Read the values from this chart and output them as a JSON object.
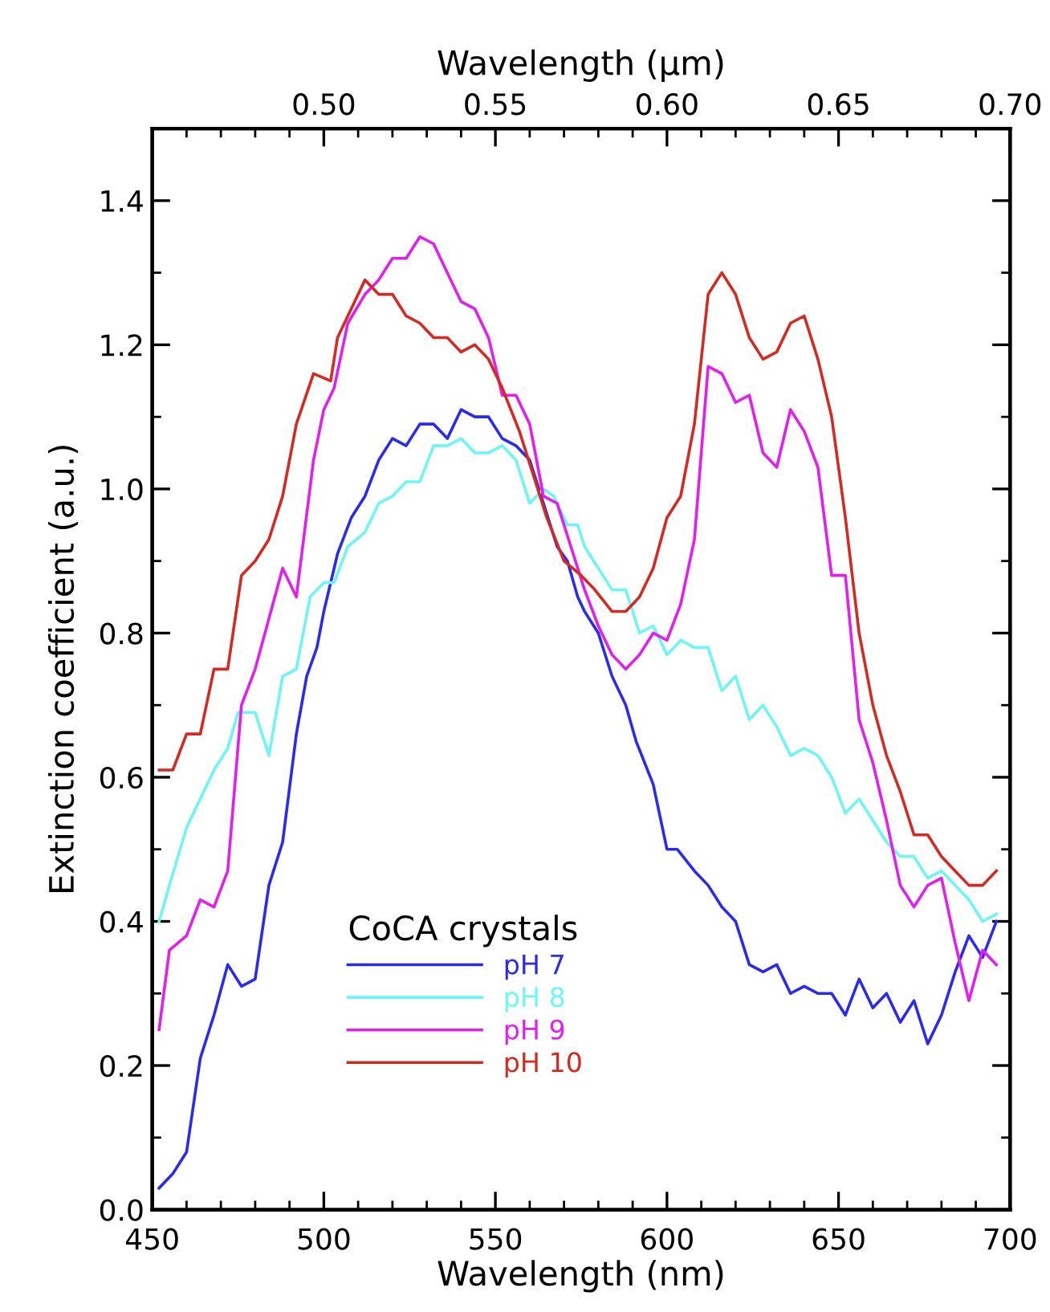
{
  "chart_data": {
    "type": "line",
    "xlabel": "Wavelength (nm)",
    "ylabel": "Extinction coefficient (a.u.)",
    "x2label": "Wavelength (μm)",
    "legend_title": "CoCA crystals",
    "legend": "bottom left",
    "grid": false,
    "xlim": [
      450,
      700
    ],
    "xticks": [
      450,
      500,
      550,
      600,
      650,
      700
    ],
    "ylim": [
      0,
      1.5
    ],
    "yticks": [
      {
        "value": 0,
        "label": "0.0"
      },
      0.2,
      0.4,
      0.6,
      0.8,
      {
        "value": 1,
        "label": "1.0"
      },
      1.2,
      1.4
    ],
    "x2lim": [
      0.45,
      0.7
    ],
    "x2ticks": [
      {
        "value": 0.5,
        "label": "0.50"
      },
      0.55,
      {
        "value": 0.6,
        "label": "0.60"
      },
      0.65,
      {
        "value": 0.7,
        "label": "0.70"
      }
    ],
    "series": [
      {
        "name": "pH 7",
        "color": "#2a2af0",
        "x": [
          452,
          456,
          460,
          464,
          468,
          472,
          476,
          480,
          484,
          488,
          492,
          495,
          498,
          500,
          504,
          508,
          512,
          516,
          520,
          524,
          528,
          532,
          536,
          540,
          544,
          548,
          552,
          556,
          560,
          564,
          568,
          571,
          574,
          576,
          580,
          584,
          588,
          591,
          596,
          600,
          603,
          608,
          612,
          616,
          620,
          624,
          628,
          632,
          636,
          640,
          644,
          648,
          652,
          656,
          660,
          664,
          668,
          672,
          676,
          680,
          684,
          688,
          692,
          696
        ],
        "values": [
          0.03,
          0.05,
          0.08,
          0.21,
          0.27,
          0.34,
          0.31,
          0.32,
          0.45,
          0.51,
          0.66,
          0.74,
          0.78,
          0.83,
          0.91,
          0.96,
          0.99,
          1.04,
          1.07,
          1.06,
          1.09,
          1.09,
          1.07,
          1.11,
          1.1,
          1.1,
          1.07,
          1.06,
          1.04,
          0.98,
          0.92,
          0.9,
          0.85,
          0.83,
          0.8,
          0.74,
          0.7,
          0.65,
          0.59,
          0.5,
          0.5,
          0.47,
          0.45,
          0.42,
          0.4,
          0.34,
          0.33,
          0.34,
          0.3,
          0.31,
          0.3,
          0.3,
          0.27,
          0.32,
          0.28,
          0.3,
          0.26,
          0.29,
          0.23,
          0.27,
          0.33,
          0.38,
          0.35,
          0.4
        ]
      },
      {
        "name": "pH 8",
        "color": "#6ef5f5",
        "x": [
          452,
          455,
          460,
          464,
          468,
          472,
          475,
          480,
          484,
          488,
          492,
          496,
          500,
          503,
          507,
          512,
          516,
          520,
          524,
          528,
          532,
          536,
          540,
          544,
          548,
          552,
          556,
          560,
          564,
          567,
          571,
          574,
          576,
          580,
          584,
          588,
          592,
          596,
          600,
          604,
          608,
          612,
          616,
          620,
          624,
          628,
          632,
          636,
          640,
          644,
          648,
          652,
          656,
          660,
          664,
          668,
          672,
          676,
          680,
          684,
          688,
          692,
          696
        ],
        "values": [
          0.4,
          0.45,
          0.53,
          0.57,
          0.61,
          0.64,
          0.69,
          0.69,
          0.63,
          0.74,
          0.75,
          0.85,
          0.87,
          0.87,
          0.92,
          0.94,
          0.98,
          0.99,
          1.01,
          1.01,
          1.06,
          1.06,
          1.07,
          1.05,
          1.05,
          1.06,
          1.04,
          0.98,
          1.0,
          0.99,
          0.95,
          0.95,
          0.92,
          0.89,
          0.86,
          0.86,
          0.8,
          0.81,
          0.77,
          0.79,
          0.78,
          0.78,
          0.72,
          0.74,
          0.68,
          0.7,
          0.67,
          0.63,
          0.64,
          0.63,
          0.6,
          0.55,
          0.57,
          0.54,
          0.51,
          0.49,
          0.49,
          0.46,
          0.47,
          0.45,
          0.43,
          0.4,
          0.41
        ]
      },
      {
        "name": "pH 9",
        "color": "#e21ef0",
        "x": [
          452,
          455,
          460,
          464,
          468,
          472,
          476,
          480,
          484,
          488,
          492,
          497,
          500,
          503,
          507,
          512,
          516,
          520,
          524,
          528,
          532,
          536,
          540,
          544,
          548,
          552,
          556,
          560,
          564,
          568,
          572,
          576,
          580,
          584,
          588,
          592,
          596,
          600,
          604,
          608,
          612,
          616,
          620,
          624,
          628,
          632,
          636,
          640,
          644,
          648,
          652,
          656,
          660,
          664,
          668,
          672,
          676,
          680,
          684,
          688,
          692,
          696
        ],
        "values": [
          0.25,
          0.36,
          0.38,
          0.43,
          0.42,
          0.47,
          0.7,
          0.75,
          0.82,
          0.89,
          0.85,
          1.04,
          1.11,
          1.14,
          1.23,
          1.27,
          1.29,
          1.32,
          1.32,
          1.35,
          1.34,
          1.3,
          1.26,
          1.25,
          1.21,
          1.13,
          1.13,
          1.09,
          0.99,
          0.98,
          0.92,
          0.86,
          0.81,
          0.77,
          0.75,
          0.77,
          0.8,
          0.79,
          0.84,
          0.93,
          1.17,
          1.16,
          1.12,
          1.13,
          1.05,
          1.03,
          1.11,
          1.08,
          1.03,
          0.88,
          0.88,
          0.68,
          0.62,
          0.54,
          0.45,
          0.42,
          0.45,
          0.46,
          0.37,
          0.29,
          0.36,
          0.34
        ]
      },
      {
        "name": "pH 10",
        "color": "#d42a22",
        "x": [
          452,
          456,
          460,
          464,
          468,
          472,
          476,
          480,
          484,
          488,
          492,
          497,
          502,
          504,
          508,
          512,
          516,
          520,
          524,
          528,
          532,
          536,
          540,
          544,
          548,
          552,
          557,
          561,
          565,
          570,
          575,
          579,
          584,
          588,
          592,
          596,
          600,
          604,
          608,
          612,
          616,
          620,
          624,
          628,
          632,
          636,
          640,
          644,
          648,
          652,
          656,
          660,
          664,
          668,
          672,
          676,
          680,
          684,
          688,
          692,
          696
        ],
        "values": [
          0.61,
          0.61,
          0.66,
          0.66,
          0.75,
          0.75,
          0.88,
          0.9,
          0.93,
          0.99,
          1.09,
          1.16,
          1.15,
          1.21,
          1.25,
          1.29,
          1.27,
          1.27,
          1.24,
          1.23,
          1.21,
          1.21,
          1.19,
          1.2,
          1.18,
          1.14,
          1.08,
          1.02,
          0.96,
          0.9,
          0.88,
          0.86,
          0.83,
          0.83,
          0.85,
          0.89,
          0.96,
          0.99,
          1.09,
          1.27,
          1.3,
          1.27,
          1.21,
          1.18,
          1.19,
          1.23,
          1.24,
          1.18,
          1.1,
          0.96,
          0.8,
          0.7,
          0.63,
          0.58,
          0.52,
          0.52,
          0.49,
          0.47,
          0.45,
          0.45,
          0.47
        ]
      }
    ]
  }
}
